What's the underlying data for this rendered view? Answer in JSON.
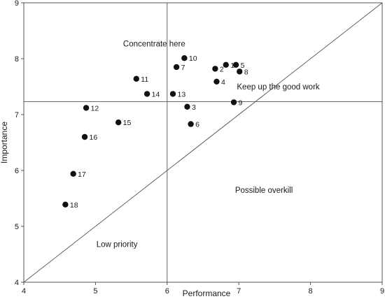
{
  "chart_data": {
    "type": "scatter",
    "xlabel": "Performance",
    "ylabel": "Importance",
    "xlim": [
      4,
      9
    ],
    "ylim": [
      4,
      9
    ],
    "x_ticks": [
      "4",
      "5",
      "6",
      "7",
      "8",
      "9"
    ],
    "y_ticks": [
      "4",
      "5",
      "6",
      "7",
      "8",
      "9"
    ],
    "grid": false,
    "reference_lines": {
      "vertical_x": 6,
      "horizontal_y": 7.23,
      "diagonal": "y = x"
    },
    "annotations": [
      {
        "text": "Concentrate here",
        "x": 5.82,
        "y": 8.22
      },
      {
        "text": "Keep up the good work",
        "x": 7.55,
        "y": 7.45
      },
      {
        "text": "Possible overkill",
        "x": 7.35,
        "y": 5.6
      },
      {
        "text": "Low priority",
        "x": 5.3,
        "y": 4.63
      }
    ],
    "points": [
      {
        "label": "1",
        "x": 6.82,
        "y": 7.89
      },
      {
        "label": "2",
        "x": 6.67,
        "y": 7.82
      },
      {
        "label": "3",
        "x": 6.28,
        "y": 7.14
      },
      {
        "label": "4",
        "x": 6.69,
        "y": 7.59
      },
      {
        "label": "5",
        "x": 6.96,
        "y": 7.89
      },
      {
        "label": "6",
        "x": 6.33,
        "y": 6.83
      },
      {
        "label": "7",
        "x": 6.13,
        "y": 7.85
      },
      {
        "label": "8",
        "x": 7.01,
        "y": 7.77
      },
      {
        "label": "9",
        "x": 6.93,
        "y": 7.22
      },
      {
        "label": "10",
        "x": 6.24,
        "y": 8.01
      },
      {
        "label": "11",
        "x": 5.57,
        "y": 7.64
      },
      {
        "label": "12",
        "x": 4.87,
        "y": 7.12
      },
      {
        "label": "13",
        "x": 6.08,
        "y": 7.37
      },
      {
        "label": "14",
        "x": 5.72,
        "y": 7.37
      },
      {
        "label": "15",
        "x": 5.32,
        "y": 6.86
      },
      {
        "label": "16",
        "x": 4.85,
        "y": 6.6
      },
      {
        "label": "17",
        "x": 4.69,
        "y": 5.94
      },
      {
        "label": "18",
        "x": 4.58,
        "y": 5.39
      }
    ]
  }
}
